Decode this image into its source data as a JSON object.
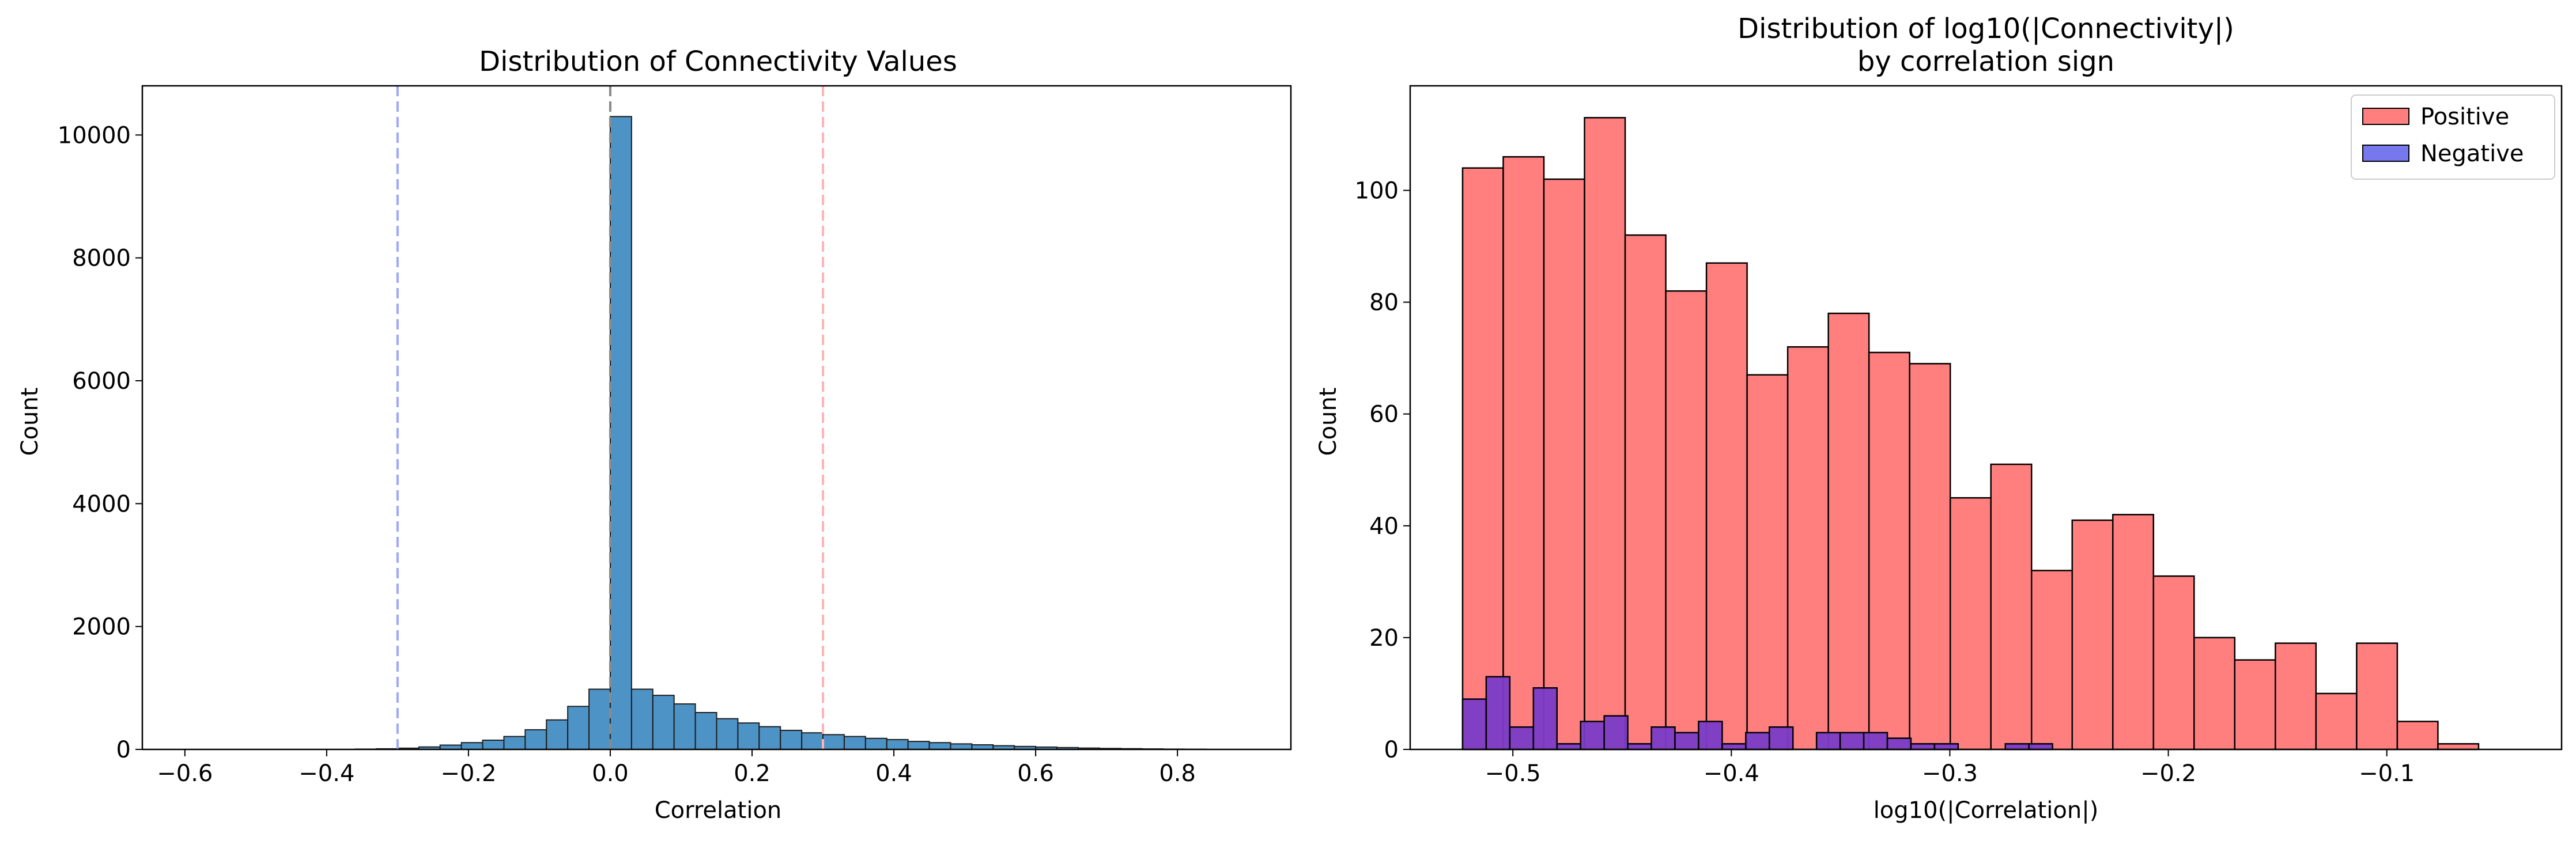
{
  "chart_data": [
    {
      "type": "bar",
      "title": "Distribution of Connectivity Values",
      "xlabel": "Correlation",
      "ylabel": "Count",
      "xlim": [
        -0.66,
        0.96
      ],
      "ylim": [
        0,
        10800
      ],
      "xticks": [
        -0.6,
        -0.4,
        -0.2,
        0.0,
        0.2,
        0.4,
        0.6,
        0.8
      ],
      "xtick_labels": [
        "−0.6",
        "−0.4",
        "−0.2",
        "0.0",
        "0.2",
        "0.4",
        "0.6",
        "0.8"
      ],
      "yticks": [
        0,
        2000,
        4000,
        6000,
        8000,
        10000
      ],
      "ytick_labels": [
        "0",
        "2000",
        "4000",
        "6000",
        "8000",
        "10000"
      ],
      "bar_color": "#3b87c0",
      "bin_edges": [
        -0.36,
        -0.33,
        -0.3,
        -0.27,
        -0.24,
        -0.21,
        -0.18,
        -0.15,
        -0.12,
        -0.09,
        -0.06,
        -0.03,
        0.0,
        0.03,
        0.06,
        0.09,
        0.12,
        0.15,
        0.18,
        0.21,
        0.24,
        0.27,
        0.3,
        0.33,
        0.36,
        0.39,
        0.42,
        0.45,
        0.48,
        0.51,
        0.54,
        0.57,
        0.6,
        0.63,
        0.66,
        0.69,
        0.72,
        0.75,
        0.78,
        0.81,
        0.84
      ],
      "counts": [
        5,
        10,
        20,
        40,
        70,
        110,
        150,
        210,
        320,
        480,
        700,
        980,
        10300,
        980,
        880,
        740,
        600,
        500,
        430,
        370,
        310,
        270,
        240,
        210,
        180,
        160,
        130,
        110,
        90,
        75,
        60,
        48,
        38,
        30,
        22,
        16,
        12,
        8,
        5,
        3
      ],
      "reference_lines": [
        {
          "x": -0.3,
          "color": "#9da7ff"
        },
        {
          "x": 0.0,
          "color": "#8a8a8a"
        },
        {
          "x": 0.3,
          "color": "#ffb3b3"
        }
      ],
      "grid": false
    },
    {
      "type": "bar",
      "title_lines": [
        "Distribution of log10(|Connectivity|)",
        "by correlation sign"
      ],
      "xlabel": "log10(|Correlation|)",
      "ylabel": "Count",
      "xlim": [
        -0.547,
        -0.02
      ],
      "ylim": [
        0,
        118.7
      ],
      "xticks": [
        -0.5,
        -0.4,
        -0.3,
        -0.2,
        -0.1
      ],
      "xtick_labels": [
        "−0.5",
        "−0.4",
        "−0.3",
        "−0.2",
        "−0.1"
      ],
      "yticks": [
        0,
        20,
        40,
        60,
        80,
        100
      ],
      "ytick_labels": [
        "0",
        "20",
        "40",
        "60",
        "80",
        "100"
      ],
      "legend_position": "top-right",
      "grid": false,
      "series": [
        {
          "name": "Positive",
          "color": "#ff7f7f",
          "bin_edges": [
            -0.523,
            -0.5044,
            -0.4858,
            -0.4672,
            -0.4486,
            -0.43,
            -0.4114,
            -0.3928,
            -0.3742,
            -0.3556,
            -0.337,
            -0.3184,
            -0.2998,
            -0.2812,
            -0.2626,
            -0.244,
            -0.2254,
            -0.2068,
            -0.1882,
            -0.1696,
            -0.151,
            -0.1324,
            -0.1138,
            -0.0952,
            -0.0766,
            -0.058,
            -0.0394
          ],
          "counts": [
            104,
            106,
            102,
            113,
            92,
            82,
            87,
            67,
            72,
            78,
            71,
            69,
            45,
            51,
            32,
            41,
            42,
            31,
            20,
            16,
            19,
            10,
            19,
            5,
            1,
            0
          ]
        },
        {
          "name": "Negative",
          "color": "#7777ee",
          "bin_edges": [
            -0.523,
            -0.5122,
            -0.5014,
            -0.4906,
            -0.4798,
            -0.469,
            -0.4582,
            -0.4474,
            -0.4366,
            -0.4258,
            -0.415,
            -0.4042,
            -0.3934,
            -0.3826,
            -0.3718,
            -0.361,
            -0.3502,
            -0.3394,
            -0.3286,
            -0.3178,
            -0.307,
            -0.2962,
            -0.2854,
            -0.2746,
            -0.2638,
            -0.253,
            -0.2422
          ],
          "counts": [
            9,
            13,
            4,
            11,
            1,
            5,
            6,
            1,
            4,
            3,
            5,
            1,
            3,
            4,
            0,
            3,
            3,
            3,
            2,
            1,
            1,
            0,
            0,
            1,
            1,
            0
          ]
        }
      ],
      "overlap_color": "#7a3cc8"
    }
  ]
}
